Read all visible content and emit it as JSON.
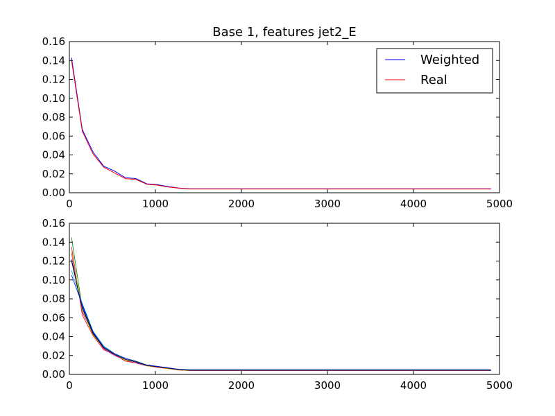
{
  "chart_data": [
    {
      "type": "line",
      "title": "Base 1, features jet2_E",
      "xlabel": "",
      "ylabel": "",
      "xlim": [
        0,
        5000
      ],
      "ylim": [
        0,
        0.16
      ],
      "x_ticks": [
        "0",
        "1000",
        "2000",
        "3000",
        "4000",
        "5000"
      ],
      "y_ticks": [
        "0.00",
        "0.02",
        "0.04",
        "0.06",
        "0.08",
        "0.10",
        "0.12",
        "0.14",
        "0.16"
      ],
      "x_tick_values": [
        0,
        1000,
        2000,
        3000,
        4000,
        5000
      ],
      "y_tick_values": [
        0,
        0.02,
        0.04,
        0.06,
        0.08,
        0.1,
        0.12,
        0.14,
        0.16
      ],
      "grid": false,
      "legend_position": "top-right",
      "x": [
        25,
        150,
        275,
        400,
        525,
        650,
        775,
        900,
        1025,
        1150,
        1275,
        1400,
        1525,
        1650,
        2000,
        2500,
        3000,
        3500,
        4000,
        4500,
        4900
      ],
      "series": [
        {
          "name": "Weighted",
          "color": "#0000ff",
          "values": [
            0.143,
            0.067,
            0.043,
            0.028,
            0.023,
            0.016,
            0.015,
            0.0095,
            0.0085,
            0.0065,
            0.005,
            0.0042,
            0.0042,
            0.0042,
            0.0042,
            0.0042,
            0.0042,
            0.0042,
            0.0042,
            0.0042,
            0.0042
          ]
        },
        {
          "name": "Real",
          "color": "#ff0000",
          "values": [
            0.14,
            0.065,
            0.041,
            0.027,
            0.021,
            0.015,
            0.014,
            0.009,
            0.008,
            0.006,
            0.0048,
            0.004,
            0.004,
            0.004,
            0.004,
            0.004,
            0.004,
            0.004,
            0.004,
            0.004,
            0.004
          ]
        }
      ]
    },
    {
      "type": "line",
      "title": "",
      "xlabel": "",
      "ylabel": "",
      "xlim": [
        0,
        5000
      ],
      "ylim": [
        0,
        0.16
      ],
      "x_ticks": [
        "0",
        "1000",
        "2000",
        "3000",
        "4000",
        "5000"
      ],
      "y_ticks": [
        "0.00",
        "0.02",
        "0.04",
        "0.06",
        "0.08",
        "0.10",
        "0.12",
        "0.14",
        "0.16"
      ],
      "x_tick_values": [
        0,
        1000,
        2000,
        3000,
        4000,
        5000
      ],
      "y_tick_values": [
        0,
        0.02,
        0.04,
        0.06,
        0.08,
        0.1,
        0.12,
        0.14,
        0.16
      ],
      "grid": false,
      "x": [
        25,
        150,
        275,
        400,
        525,
        650,
        775,
        900,
        1025,
        1150,
        1275,
        1400,
        1525,
        1650,
        2000,
        2500,
        3000,
        3500,
        4000,
        4500,
        4900
      ],
      "series": [
        {
          "color": "#0000ff",
          "values": [
            0.122,
            0.072,
            0.044,
            0.028,
            0.022,
            0.016,
            0.013,
            0.0095,
            0.008,
            0.0065,
            0.005,
            0.0045,
            0.0045,
            0.0045,
            0.0045,
            0.0045,
            0.0045,
            0.0045,
            0.0045,
            0.0045,
            0.0045
          ]
        },
        {
          "color": "#008000",
          "values": [
            0.145,
            0.07,
            0.045,
            0.029,
            0.021,
            0.017,
            0.014,
            0.01,
            0.0085,
            0.007,
            0.0055,
            0.005,
            0.005,
            0.005,
            0.005,
            0.005,
            0.005,
            0.005,
            0.005,
            0.005,
            0.005
          ]
        },
        {
          "color": "#ff0000",
          "values": [
            0.135,
            0.063,
            0.041,
            0.026,
            0.021,
            0.014,
            0.012,
            0.009,
            0.0075,
            0.006,
            0.0045,
            0.004,
            0.004,
            0.004,
            0.004,
            0.004,
            0.004,
            0.004,
            0.004,
            0.004,
            0.004
          ]
        },
        {
          "color": "#00bfbf",
          "values": [
            0.11,
            0.075,
            0.046,
            0.03,
            0.022,
            0.016,
            0.013,
            0.0095,
            0.0085,
            0.0065,
            0.005,
            0.0045,
            0.0045,
            0.0045,
            0.0045,
            0.0045,
            0.0045,
            0.0045,
            0.0045,
            0.0045,
            0.0045
          ]
        },
        {
          "color": "#bf00bf",
          "values": [
            0.128,
            0.066,
            0.043,
            0.027,
            0.02,
            0.015,
            0.012,
            0.009,
            0.008,
            0.0065,
            0.005,
            0.0042,
            0.0042,
            0.0042,
            0.0042,
            0.0042,
            0.0042,
            0.0042,
            0.0042,
            0.0042,
            0.0042
          ]
        },
        {
          "color": "#bfbf00",
          "values": [
            0.13,
            0.068,
            0.042,
            0.028,
            0.021,
            0.015,
            0.013,
            0.009,
            0.008,
            0.006,
            0.0048,
            0.0042,
            0.0042,
            0.0042,
            0.0042,
            0.0042,
            0.0042,
            0.0042,
            0.0042,
            0.0042,
            0.0042
          ]
        },
        {
          "color": "#000000",
          "values": [
            0.12,
            0.07,
            0.043,
            0.028,
            0.021,
            0.016,
            0.013,
            0.0095,
            0.008,
            0.0065,
            0.005,
            0.0043,
            0.0043,
            0.0043,
            0.0043,
            0.0043,
            0.0043,
            0.0043,
            0.0043,
            0.0043,
            0.0043
          ]
        },
        {
          "color": "#0000ff",
          "values": [
            0.105,
            0.074,
            0.045,
            0.029,
            0.022,
            0.017,
            0.0135,
            0.01,
            0.0085,
            0.007,
            0.0052,
            0.0046,
            0.0046,
            0.0046,
            0.0046,
            0.0046,
            0.0046,
            0.0046,
            0.0046,
            0.0046,
            0.0046
          ]
        }
      ]
    }
  ]
}
